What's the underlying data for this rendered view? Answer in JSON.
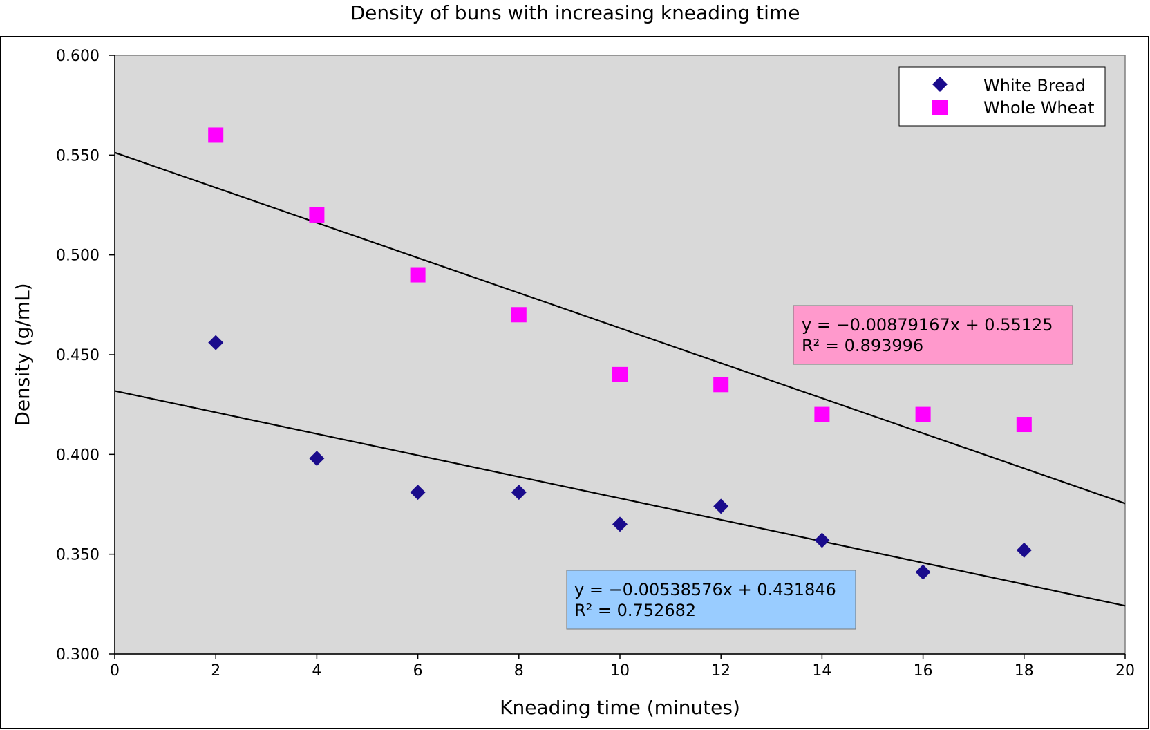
{
  "chart_data": {
    "type": "scatter",
    "title": "Density of buns with increasing kneading time",
    "xlabel": "Kneading time (minutes)",
    "ylabel": "Density (g/mL)",
    "xlim": [
      0,
      20
    ],
    "ylim": [
      0.3,
      0.6
    ],
    "x_ticks": [
      "0",
      "2",
      "4",
      "6",
      "8",
      "10",
      "12",
      "14",
      "16",
      "18",
      "20"
    ],
    "y_ticks": [
      "0.300",
      "0.350",
      "0.400",
      "0.450",
      "0.500",
      "0.550",
      "0.600"
    ],
    "grid": false,
    "plot_background": "#d9d9d9",
    "legend_position": "top-right",
    "series": [
      {
        "name": "White Bread",
        "marker": "diamond",
        "color": "#1a0b8c",
        "x": [
          2,
          4,
          6,
          8,
          10,
          12,
          14,
          16,
          18
        ],
        "y": [
          0.456,
          0.398,
          0.381,
          0.381,
          0.365,
          0.374,
          0.357,
          0.341,
          0.352
        ],
        "trendline": {
          "slope": -0.00538576,
          "intercept": 0.431846,
          "equation": "y = −0.00538576x + 0.431846",
          "r_squared": "R² = 0.752682",
          "box_color": "#99ccff"
        }
      },
      {
        "name": "Whole Wheat",
        "marker": "square",
        "color": "#ff00ff",
        "x": [
          2,
          4,
          6,
          8,
          10,
          12,
          14,
          16,
          18
        ],
        "y": [
          0.56,
          0.52,
          0.49,
          0.47,
          0.44,
          0.435,
          0.42,
          0.42,
          0.415
        ],
        "trendline": {
          "slope": -0.00879167,
          "intercept": 0.55125,
          "equation": "y = −0.00879167x + 0.55125",
          "r_squared": "R² = 0.893996",
          "box_color": "#ff99cc"
        }
      }
    ]
  }
}
